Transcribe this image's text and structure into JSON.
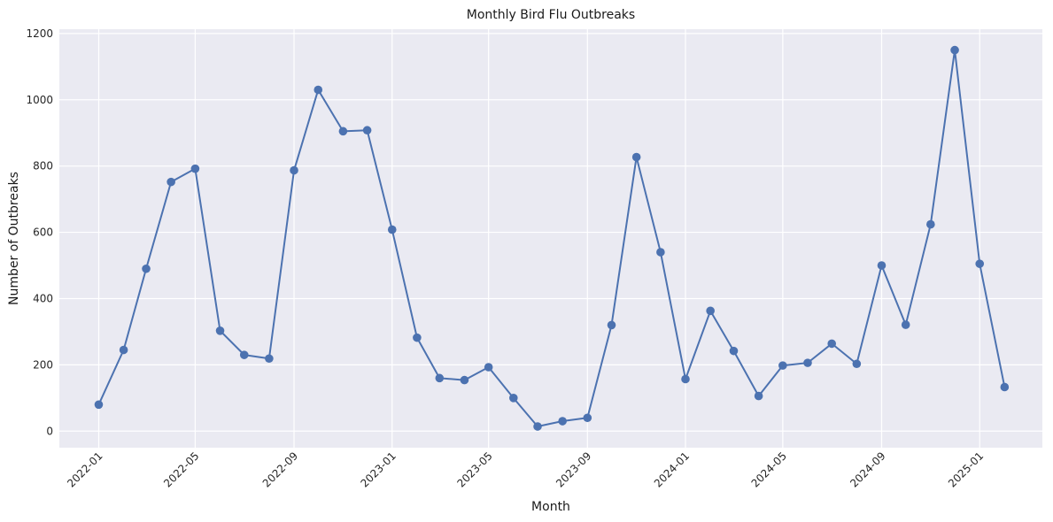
{
  "chart_data": {
    "type": "line",
    "title": "Monthly Bird Flu Outbreaks",
    "xlabel": "Month",
    "ylabel": "Number of Outbreaks",
    "x": [
      "2022-01",
      "2022-02",
      "2022-03",
      "2022-04",
      "2022-05",
      "2022-06",
      "2022-07",
      "2022-08",
      "2022-09",
      "2022-10",
      "2022-11",
      "2022-12",
      "2023-01",
      "2023-02",
      "2023-03",
      "2023-04",
      "2023-05",
      "2023-06",
      "2023-07",
      "2023-08",
      "2023-09",
      "2023-10",
      "2023-11",
      "2023-12",
      "2024-01",
      "2024-02",
      "2024-03",
      "2024-04",
      "2024-05",
      "2024-06",
      "2024-07",
      "2024-08",
      "2024-09",
      "2024-10",
      "2024-11",
      "2024-12",
      "2025-01",
      "2025-02"
    ],
    "series": [
      {
        "values": [
          80,
          245,
          490,
          752,
          792,
          303,
          230,
          219,
          787,
          1030,
          905,
          908,
          608,
          282,
          160,
          154,
          193,
          100,
          14,
          30,
          40,
          320,
          827,
          540,
          157,
          363,
          242,
          106,
          198,
          206,
          264,
          203,
          500,
          321,
          624,
          1150,
          505,
          133
        ],
        "color": "#4c72b0"
      }
    ],
    "x_ticks": [
      "2022-01",
      "2022-05",
      "2022-09",
      "2023-01",
      "2023-05",
      "2023-09",
      "2024-01",
      "2024-05",
      "2024-09",
      "2025-01"
    ],
    "y_ticks": [
      0,
      200,
      400,
      600,
      800,
      1000,
      1200
    ],
    "ylim": [
      -50,
      1213
    ],
    "xlim": [
      "2021-11-13",
      "2025-03-20"
    ],
    "grid": true,
    "colors": {
      "plot_background": "#eaeaf2",
      "grid": "#ffffff",
      "line": "#4c72b0"
    }
  }
}
